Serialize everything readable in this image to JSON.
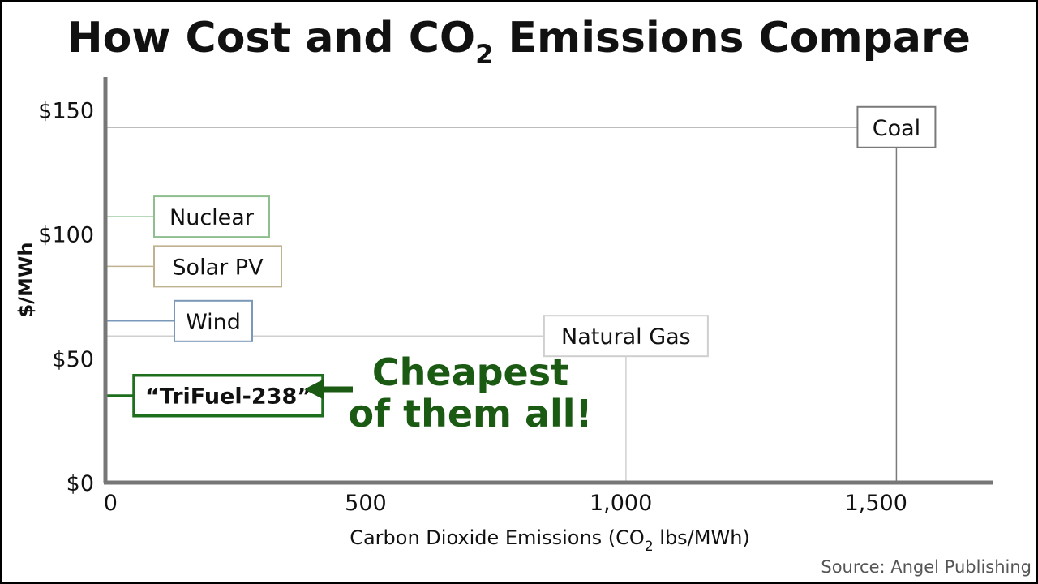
{
  "chart_data": {
    "type": "scatter",
    "title": "How Cost and CO",
    "title_sub": "2",
    "title_tail": " Emissions Compare",
    "xlabel": "Carbon Dioxide Emissions (CO",
    "xlabel_sub": "2",
    "xlabel_tail": " lbs/MWh)",
    "ylabel": "$/MWh",
    "xlim": [
      -10,
      1730
    ],
    "ylim": [
      0,
      155
    ],
    "x_ticks": [
      {
        "value": 0,
        "label": "0"
      },
      {
        "value": 500,
        "label": "500"
      },
      {
        "value": 1000,
        "label": "1,000"
      },
      {
        "value": 1500,
        "label": "1,500"
      }
    ],
    "y_ticks": [
      {
        "value": 0,
        "label": "$0"
      },
      {
        "value": 50,
        "label": "$50"
      },
      {
        "value": 100,
        "label": "$100"
      },
      {
        "value": 150,
        "label": "$150"
      }
    ],
    "points": [
      {
        "name": "Coal",
        "x": 1540,
        "y": 143,
        "color": "#7a7a7a"
      },
      {
        "name": "Nuclear",
        "x": 0,
        "y": 107,
        "color": "#8fbf8f"
      },
      {
        "name": "Solar PV",
        "x": 0,
        "y": 87,
        "color": "#bfb290"
      },
      {
        "name": "Wind",
        "x": 0,
        "y": 65,
        "color": "#7a98b8"
      },
      {
        "name": "Natural Gas",
        "x": 1010,
        "y": 59,
        "color": "#cfcfcf"
      },
      {
        "name": "“TriFuel-238”",
        "x": 0,
        "y": 35,
        "color": "#1d6f1d"
      }
    ],
    "annotation": {
      "line1": "Cheapest",
      "line2": "of them all!",
      "color": "#1a5a12"
    },
    "source": "Source: Angel Publishing"
  }
}
